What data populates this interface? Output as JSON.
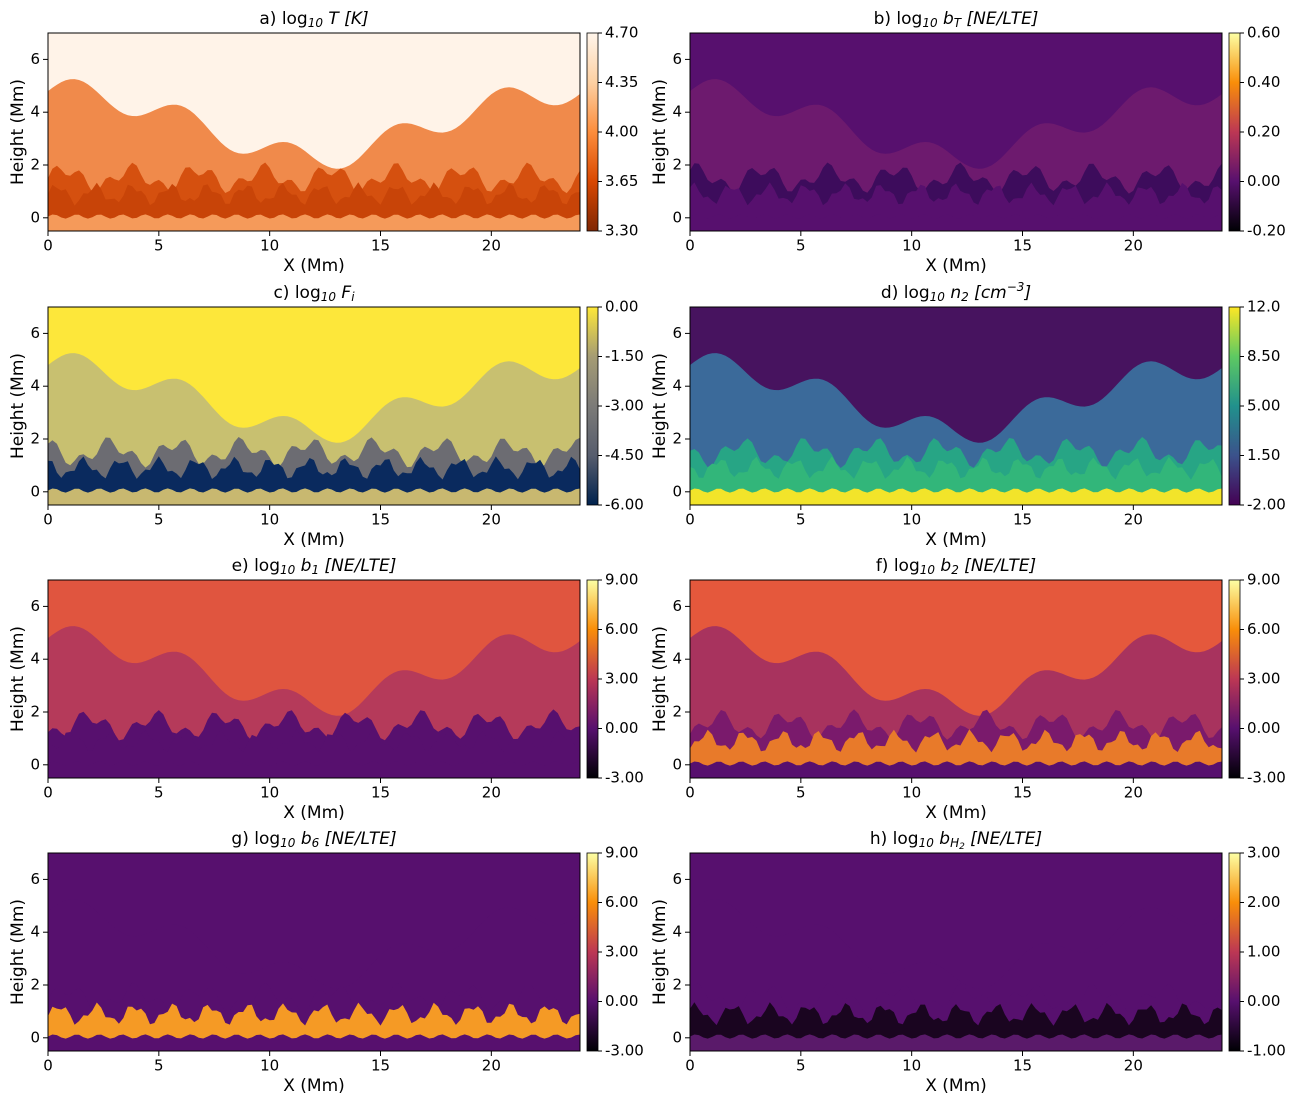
{
  "chart_data": [
    {
      "type": "heatmap",
      "title": [
        {
          "text": "a) log"
        },
        {
          "text": "10",
          "style": "sub"
        },
        {
          "text": " T [K]",
          "style": "italic"
        }
      ],
      "xlabel": "X (Mm)",
      "ylabel": "Height (Mm)",
      "xlim": [
        0,
        24
      ],
      "ylim": [
        -0.5,
        7
      ],
      "xticks": [
        0,
        5,
        10,
        15,
        20
      ],
      "yticks": [
        0,
        2,
        4,
        6
      ],
      "colormap": [
        "#7f2704",
        "#d94801",
        "#fd8d3c",
        "#fdd0a2",
        "#fff5eb"
      ],
      "clim": [
        3.3,
        4.7
      ],
      "cticks": [
        {
          "value": 3.3,
          "label": "3.30"
        },
        {
          "value": 3.65,
          "label": "3.65"
        },
        {
          "value": 4,
          "label": "4.00"
        },
        {
          "value": 4.35,
          "label": "4.35"
        },
        {
          "value": 4.7,
          "label": "4.70"
        }
      ]
    },
    {
      "type": "heatmap",
      "title": [
        {
          "text": "b) log"
        },
        {
          "text": "10",
          "style": "sub"
        },
        {
          "text": " b",
          "style": "italic"
        },
        {
          "text": "T",
          "style": "sub"
        },
        {
          "text": " [NE/LTE]",
          "style": "italic"
        }
      ],
      "xlabel": "X (Mm)",
      "ylabel": "Height (Mm)",
      "xlim": [
        0,
        24
      ],
      "ylim": [
        -0.5,
        7
      ],
      "xticks": [
        0,
        5,
        10,
        15,
        20
      ],
      "yticks": [
        0,
        2,
        4,
        6
      ],
      "colormap": [
        "#000004",
        "#57106e",
        "#bc3754",
        "#f98e09",
        "#fcffa4"
      ],
      "clim": [
        -0.2,
        0.6
      ],
      "cticks": [
        {
          "value": -0.2,
          "label": "-0.20"
        },
        {
          "value": 0,
          "label": "0.00"
        },
        {
          "value": 0.2,
          "label": "0.20"
        },
        {
          "value": 0.4,
          "label": "0.40"
        },
        {
          "value": 0.6,
          "label": "0.60"
        }
      ]
    },
    {
      "type": "heatmap",
      "title": [
        {
          "text": "c) log"
        },
        {
          "text": "10",
          "style": "sub"
        },
        {
          "text": " F",
          "style": "italic"
        },
        {
          "text": "i",
          "style": "sub"
        }
      ],
      "xlabel": "X (Mm)",
      "ylabel": "Height (Mm)",
      "xlim": [
        0,
        24
      ],
      "ylim": [
        -0.5,
        7
      ],
      "xticks": [
        0,
        5,
        10,
        15,
        20
      ],
      "yticks": [
        0,
        2,
        4,
        6
      ],
      "colormap": [
        "#00224e",
        "#575d6d",
        "#7c7b78",
        "#a59c74",
        "#fee838"
      ],
      "clim": [
        -6,
        0
      ],
      "cticks": [
        {
          "value": -6,
          "label": "-6.00"
        },
        {
          "value": -4.5,
          "label": "-4.50"
        },
        {
          "value": -3,
          "label": "-3.00"
        },
        {
          "value": -1.5,
          "label": "-1.50"
        },
        {
          "value": 0,
          "label": "0.00"
        }
      ]
    },
    {
      "type": "heatmap",
      "title": [
        {
          "text": "d) log"
        },
        {
          "text": "10",
          "style": "sub"
        },
        {
          "text": " n",
          "style": "italic"
        },
        {
          "text": "2",
          "style": "sub"
        },
        {
          "text": " [cm",
          "style": "italic"
        },
        {
          "text": "−3",
          "style": "sup"
        },
        {
          "text": "]",
          "style": "italic"
        }
      ],
      "xlabel": "X (Mm)",
      "ylabel": "Height (Mm)",
      "xlim": [
        0,
        24
      ],
      "ylim": [
        -0.5,
        7
      ],
      "xticks": [
        0,
        5,
        10,
        15,
        20
      ],
      "yticks": [
        0,
        2,
        4,
        6
      ],
      "colormap": [
        "#440154",
        "#3b528b",
        "#21918c",
        "#5ec962",
        "#fde725"
      ],
      "clim": [
        -2,
        12
      ],
      "cticks": [
        {
          "value": -2,
          "label": "-2.00"
        },
        {
          "value": 1.5,
          "label": "1.50"
        },
        {
          "value": 5,
          "label": "5.00"
        },
        {
          "value": 8.5,
          "label": "8.50"
        },
        {
          "value": 12,
          "label": "12.0"
        }
      ]
    },
    {
      "type": "heatmap",
      "title": [
        {
          "text": "e) log"
        },
        {
          "text": "10",
          "style": "sub"
        },
        {
          "text": " b",
          "style": "italic"
        },
        {
          "text": "1",
          "style": "sub"
        },
        {
          "text": " [NE/LTE]",
          "style": "italic"
        }
      ],
      "xlabel": "X (Mm)",
      "ylabel": "Height (Mm)",
      "xlim": [
        0,
        24
      ],
      "ylim": [
        -0.5,
        7
      ],
      "xticks": [
        0,
        5,
        10,
        15,
        20
      ],
      "yticks": [
        0,
        2,
        4,
        6
      ],
      "colormap": [
        "#000004",
        "#57106e",
        "#bc3754",
        "#f98e09",
        "#fcffa4"
      ],
      "clim": [
        -3,
        9
      ],
      "cticks": [
        {
          "value": -3,
          "label": "-3.00"
        },
        {
          "value": 0,
          "label": "0.00"
        },
        {
          "value": 3,
          "label": "3.00"
        },
        {
          "value": 6,
          "label": "6.00"
        },
        {
          "value": 9,
          "label": "9.00"
        }
      ]
    },
    {
      "type": "heatmap",
      "title": [
        {
          "text": "f) log"
        },
        {
          "text": "10",
          "style": "sub"
        },
        {
          "text": " b",
          "style": "italic"
        },
        {
          "text": "2",
          "style": "sub"
        },
        {
          "text": " [NE/LTE]",
          "style": "italic"
        }
      ],
      "xlabel": "X (Mm)",
      "ylabel": "Height (Mm)",
      "xlim": [
        0,
        24
      ],
      "ylim": [
        -0.5,
        7
      ],
      "xticks": [
        0,
        5,
        10,
        15,
        20
      ],
      "yticks": [
        0,
        2,
        4,
        6
      ],
      "colormap": [
        "#000004",
        "#57106e",
        "#bc3754",
        "#f98e09",
        "#fcffa4"
      ],
      "clim": [
        -3,
        9
      ],
      "cticks": [
        {
          "value": -3,
          "label": "-3.00"
        },
        {
          "value": 0,
          "label": "0.00"
        },
        {
          "value": 3,
          "label": "3.00"
        },
        {
          "value": 6,
          "label": "6.00"
        },
        {
          "value": 9,
          "label": "9.00"
        }
      ]
    },
    {
      "type": "heatmap",
      "title": [
        {
          "text": "g) log"
        },
        {
          "text": "10",
          "style": "sub"
        },
        {
          "text": " b",
          "style": "italic"
        },
        {
          "text": "6",
          "style": "sub"
        },
        {
          "text": " [NE/LTE]",
          "style": "italic"
        }
      ],
      "xlabel": "X (Mm)",
      "ylabel": "Height (Mm)",
      "xlim": [
        0,
        24
      ],
      "ylim": [
        -0.5,
        7
      ],
      "xticks": [
        0,
        5,
        10,
        15,
        20
      ],
      "yticks": [
        0,
        2,
        4,
        6
      ],
      "colormap": [
        "#000004",
        "#57106e",
        "#bc3754",
        "#f98e09",
        "#fcffa4"
      ],
      "clim": [
        -3,
        9
      ],
      "cticks": [
        {
          "value": -3,
          "label": "-3.00"
        },
        {
          "value": 0,
          "label": "0.00"
        },
        {
          "value": 3,
          "label": "3.00"
        },
        {
          "value": 6,
          "label": "6.00"
        },
        {
          "value": 9,
          "label": "9.00"
        }
      ]
    },
    {
      "type": "heatmap",
      "title": [
        {
          "text": "h) log"
        },
        {
          "text": "10",
          "style": "sub"
        },
        {
          "text": " b",
          "style": "italic"
        },
        {
          "text": "H",
          "style": "sub"
        },
        {
          "text": "2",
          "style": "sub2"
        },
        {
          "text": " [NE/LTE]",
          "style": "italic"
        }
      ],
      "xlabel": "X (Mm)",
      "ylabel": "Height (Mm)",
      "xlim": [
        0,
        24
      ],
      "ylim": [
        -0.5,
        7
      ],
      "xticks": [
        0,
        5,
        10,
        15,
        20
      ],
      "yticks": [
        0,
        2,
        4,
        6
      ],
      "colormap": [
        "#000004",
        "#57106e",
        "#bc3754",
        "#f98e09",
        "#fcffa4"
      ],
      "clim": [
        -1,
        3
      ],
      "cticks": [
        {
          "value": -1,
          "label": "-1.00"
        },
        {
          "value": 0,
          "label": "0.00"
        },
        {
          "value": 1,
          "label": "1.00"
        },
        {
          "value": 2,
          "label": "2.00"
        },
        {
          "value": 3,
          "label": "3.00"
        }
      ]
    }
  ]
}
